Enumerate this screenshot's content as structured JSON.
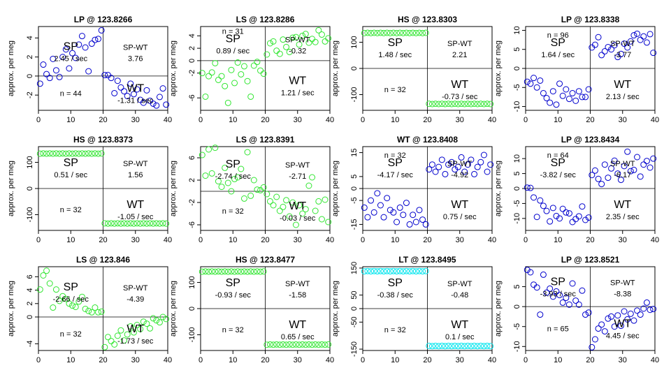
{
  "figure": {
    "ylabel": "approx. per meg",
    "x_ticks": [
      0,
      10,
      20,
      30,
      40
    ],
    "label_sp": "SP",
    "label_wt": "WT",
    "label_spwt": "SP-WT",
    "rate_suffix": " / sec",
    "n_prefix": "n = "
  },
  "chart_data": [
    {
      "type": "scatter",
      "title": "LP @ 123.8266",
      "color": "#0000cd",
      "xlim": [
        0,
        40
      ],
      "ylim": [
        -3.6,
        5.2
      ],
      "yticks": [
        -2,
        0,
        2,
        4
      ],
      "split_x": 20,
      "sp_rate": "2.45",
      "wt_rate": "-1.31",
      "spwt": "3.76",
      "n": "44",
      "n_pos": "bottom-left",
      "x": [
        0,
        1,
        2,
        3,
        4,
        5,
        6,
        7,
        8,
        9,
        10,
        11,
        12,
        13,
        14,
        15,
        16,
        17,
        18,
        19,
        20,
        21,
        22,
        23,
        24,
        25,
        26,
        27,
        28,
        29,
        30,
        31,
        32,
        33,
        34,
        35,
        36,
        37,
        38,
        39
      ],
      "y": [
        -0.8,
        1.2,
        0.2,
        -0.2,
        1.8,
        0.6,
        -0.1,
        2.0,
        2.8,
        0.8,
        2.4,
        1.9,
        3.3,
        4.2,
        3.0,
        0.5,
        3.4,
        3.8,
        3.9,
        4.8,
        0.1,
        0.1,
        -0.2,
        -1.8,
        -0.5,
        -1.2,
        -1.6,
        -2.1,
        -0.8,
        -1.9,
        -1.4,
        -2.5,
        -2.8,
        -1.5,
        -2.6,
        -2.9,
        -3.1,
        -2.2,
        -1.3,
        -3.0
      ]
    },
    {
      "type": "scatter",
      "title": "LS @ 123.8286",
      "color": "#32e632",
      "xlim": [
        0,
        40
      ],
      "ylim": [
        -8,
        5.5
      ],
      "yticks": [
        -6,
        -2,
        0,
        2,
        4
      ],
      "split_x": 20,
      "sp_rate": "0.89",
      "wt_rate": "1.21",
      "spwt": "-0.32",
      "n": "31",
      "n_pos": "top-left",
      "x": [
        0,
        1,
        2,
        3,
        4,
        5,
        6,
        7,
        8,
        9,
        10,
        11,
        12,
        13,
        14,
        15,
        16,
        17,
        18,
        19,
        20,
        21,
        22,
        23,
        24,
        25,
        26,
        27,
        28,
        29,
        30,
        31,
        32,
        33,
        34,
        35,
        36,
        37,
        38,
        39
      ],
      "y": [
        -2.0,
        -5.8,
        -2.5,
        -1.9,
        -0.4,
        -3.1,
        -2.5,
        -4.1,
        -6.8,
        -1.5,
        -3.6,
        -0.3,
        -2.2,
        -0.9,
        -3.3,
        -5.8,
        -0.8,
        -0.2,
        -1.6,
        -2.1,
        1.0,
        2.8,
        3.1,
        1.6,
        1.1,
        3.4,
        2.2,
        1.4,
        3.7,
        3.8,
        2.6,
        4.0,
        4.3,
        2.9,
        3.5,
        3.0,
        4.9,
        4.2,
        3.1,
        3.6
      ]
    },
    {
      "type": "scatter",
      "title": "HS @ 123.8303",
      "color": "#32e632",
      "xlim": [
        0,
        40
      ],
      "ylim": [
        -160,
        160
      ],
      "yticks": [
        -100,
        0,
        100
      ],
      "split_x": 20,
      "sp_rate": "1.48",
      "wt_rate": "-0.73",
      "spwt": "2.21",
      "n": "32",
      "n_pos": "bottom-left",
      "x": [
        0,
        1,
        2,
        3,
        4,
        5,
        6,
        7,
        8,
        9,
        10,
        11,
        12,
        13,
        14,
        15,
        16,
        17,
        18,
        19,
        20,
        21,
        22,
        23,
        24,
        25,
        26,
        27,
        28,
        29,
        30,
        31,
        32,
        33,
        34,
        35,
        36,
        37,
        38,
        39
      ],
      "y": [
        135,
        136,
        135,
        136,
        135,
        136,
        135,
        136,
        135,
        136,
        135,
        136,
        135,
        136,
        135,
        136,
        135,
        136,
        135,
        136,
        -135,
        -136,
        -135,
        -136,
        -135,
        -136,
        -135,
        -136,
        -135,
        -136,
        -135,
        -136,
        -135,
        -136,
        -135,
        -136,
        -135,
        -136,
        -135,
        -136
      ]
    },
    {
      "type": "scatter",
      "title": "LP @ 123.8338",
      "color": "#0000cd",
      "xlim": [
        0,
        40
      ],
      "ylim": [
        -11,
        11
      ],
      "yticks": [
        -10,
        -5,
        0,
        5,
        10
      ],
      "split_x": 20,
      "sp_rate": "1.64",
      "wt_rate": "2.13",
      "spwt": "-3.77",
      "n": "96",
      "n_pos": "top-left",
      "x": [
        0,
        1,
        2,
        3,
        4,
        5,
        6,
        7,
        8,
        9,
        10,
        11,
        12,
        13,
        14,
        15,
        16,
        17,
        18,
        19,
        20,
        21,
        22,
        23,
        24,
        25,
        26,
        27,
        28,
        29,
        30,
        31,
        32,
        33,
        34,
        35,
        36,
        37,
        38,
        39
      ],
      "y": [
        -3.5,
        -4.0,
        -2.5,
        -5.0,
        -3.2,
        -6.5,
        -7.8,
        -9.0,
        -6.0,
        -9.5,
        -4.0,
        -7.2,
        -5.5,
        -8.0,
        -6.5,
        -8.5,
        -6.0,
        -7.5,
        -7.5,
        -5.5,
        5.5,
        6.2,
        8.2,
        3.5,
        4.5,
        5.6,
        5.0,
        6.1,
        3.0,
        3.8,
        6.5,
        5.5,
        7.1,
        8.7,
        9.1,
        7.5,
        8.4,
        6.8,
        9.0,
        4.1
      ]
    },
    {
      "type": "scatter",
      "title": "HS @ 123.8373",
      "color": "#32e632",
      "xlim": [
        0,
        40
      ],
      "ylim": [
        -160,
        160
      ],
      "yticks": [
        -100,
        0,
        100
      ],
      "split_x": 20,
      "sp_rate": "0.51",
      "wt_rate": "-1.05",
      "spwt": "1.56",
      "n": "32",
      "n_pos": "bottom-left",
      "x": [
        0,
        1,
        2,
        3,
        4,
        5,
        6,
        7,
        8,
        9,
        10,
        11,
        12,
        13,
        14,
        15,
        16,
        17,
        18,
        19,
        20,
        21,
        22,
        23,
        24,
        25,
        26,
        27,
        28,
        29,
        30,
        31,
        32,
        33,
        34,
        35,
        36,
        37,
        38,
        39
      ],
      "y": [
        133,
        134,
        133,
        134,
        133,
        134,
        133,
        134,
        133,
        134,
        133,
        134,
        133,
        134,
        133,
        134,
        133,
        134,
        133,
        134,
        -133,
        -134,
        -133,
        -134,
        -133,
        -134,
        -133,
        -134,
        -133,
        -134,
        -133,
        -134,
        -133,
        -134,
        -133,
        -134,
        -133,
        -134,
        -133,
        -134
      ]
    },
    {
      "type": "scatter",
      "title": "LS @ 123.8391",
      "color": "#32e632",
      "xlim": [
        0,
        40
      ],
      "ylim": [
        -7,
        8
      ],
      "yticks": [
        -6,
        -2,
        2,
        6
      ],
      "split_x": 20,
      "sp_rate": "-2.74",
      "wt_rate": "-0.03",
      "spwt": "-2.71",
      "n": "32",
      "n_pos": "bottom-left",
      "x": [
        0,
        1,
        2,
        3,
        4,
        5,
        6,
        7,
        8,
        9,
        10,
        11,
        12,
        13,
        14,
        15,
        16,
        17,
        18,
        19,
        20,
        21,
        22,
        23,
        24,
        25,
        26,
        27,
        28,
        29,
        30,
        31,
        32,
        33,
        34,
        35,
        36,
        37,
        38,
        39
      ],
      "y": [
        6.5,
        2.8,
        7.5,
        3.2,
        7.8,
        1.8,
        0.8,
        4.2,
        1.5,
        0.0,
        2.2,
        2.5,
        4.0,
        -1.3,
        7.0,
        -0.8,
        2.0,
        0.3,
        0.2,
        0.7,
        -0.5,
        -1.8,
        -2.5,
        -1.0,
        -3.5,
        -2.8,
        -1.6,
        -4.5,
        -2.0,
        -6.0,
        -2.5,
        -4.0,
        -3.2,
        1.0,
        2.5,
        -3.5,
        -1.8,
        -5.0,
        -1.5,
        -5.5
      ]
    },
    {
      "type": "scatter",
      "title": "WT @ 123.8408",
      "color": "#0000cd",
      "xlim": [
        0,
        40
      ],
      "ylim": [
        -17.5,
        17.5
      ],
      "yticks": [
        -15,
        -5,
        0,
        5,
        15
      ],
      "split_x": 20,
      "sp_rate": "-4.17",
      "wt_rate": "0.75",
      "spwt": "-4.92",
      "n": "32",
      "n_pos": "top-left",
      "x": [
        0,
        1,
        2,
        3,
        4,
        5,
        6,
        7,
        8,
        9,
        10,
        11,
        12,
        13,
        14,
        15,
        16,
        17,
        18,
        19,
        20,
        21,
        22,
        23,
        24,
        25,
        26,
        27,
        28,
        29,
        30,
        31,
        32,
        33,
        34,
        35,
        36,
        37,
        38,
        39
      ],
      "y": [
        -8,
        -12,
        -5,
        -10,
        -2,
        -7,
        -12,
        -4,
        -9,
        -10,
        -14,
        -8,
        -11,
        -6,
        -15,
        -11,
        -14,
        -9,
        -13,
        -15,
        8,
        10,
        7,
        9,
        12,
        6,
        10,
        11,
        8,
        9,
        13,
        7,
        10,
        12,
        6,
        9,
        11,
        14,
        7,
        10
      ]
    },
    {
      "type": "scatter",
      "title": "LP @ 123.8434",
      "color": "#0000cd",
      "xlim": [
        0,
        40
      ],
      "ylim": [
        -14,
        14
      ],
      "yticks": [
        -10,
        -5,
        0,
        5,
        10
      ],
      "split_x": 20,
      "sp_rate": "-3.82",
      "wt_rate": "2.35",
      "spwt": "-6.17",
      "n": "64",
      "n_pos": "top-left",
      "x": [
        0,
        1,
        2,
        3,
        4,
        5,
        6,
        7,
        8,
        9,
        10,
        11,
        12,
        13,
        14,
        15,
        16,
        17,
        18,
        19,
        20,
        21,
        22,
        23,
        24,
        25,
        26,
        27,
        28,
        29,
        30,
        31,
        32,
        33,
        34,
        35,
        36,
        37,
        38,
        39
      ],
      "y": [
        0.3,
        0.2,
        -3.0,
        -9.5,
        -4.0,
        -5.8,
        -7.5,
        -11.0,
        -6.5,
        -9.2,
        -10.0,
        -6.8,
        -8.0,
        -8.3,
        -11.2,
        -10.2,
        -9.3,
        -6.0,
        -10.5,
        -9.7,
        4.5,
        6.0,
        3.2,
        1.5,
        8.0,
        3.6,
        6.7,
        9.3,
        5.0,
        2.9,
        7.5,
        12.3,
        5.8,
        6.2,
        10.5,
        4.0,
        8.0,
        9.2,
        7.0,
        10.0
      ]
    },
    {
      "type": "scatter",
      "title": "LS @ 123.846",
      "color": "#32e632",
      "xlim": [
        0,
        40
      ],
      "ylim": [
        -5,
        7.5
      ],
      "yticks": [
        -4,
        0,
        2,
        4,
        6
      ],
      "split_x": 20,
      "sp_rate": "-2.66",
      "wt_rate": "-1.73",
      "spwt": "-4.39",
      "n": "32",
      "n_pos": "bottom-left",
      "x": [
        0,
        1,
        2,
        3,
        4,
        5,
        6,
        7,
        8,
        9,
        10,
        11,
        12,
        13,
        14,
        15,
        16,
        17,
        18,
        19,
        20,
        21,
        22,
        23,
        24,
        25,
        26,
        27,
        28,
        29,
        30,
        31,
        32,
        33,
        34,
        35,
        36,
        37,
        38,
        39
      ],
      "y": [
        4.1,
        6.2,
        6.9,
        5.0,
        1.4,
        4.1,
        2.4,
        3.1,
        2.7,
        2.0,
        1.7,
        1.5,
        2.3,
        3.0,
        1.2,
        0.9,
        0.7,
        1.4,
        0.7,
        0.8,
        -4.5,
        -3.0,
        -3.6,
        -4.1,
        -2.8,
        -2.0,
        -3.5,
        -2.6,
        -1.4,
        -2.3,
        -1.2,
        -1.8,
        -0.7,
        -1.0,
        -1.7,
        -0.2,
        -0.5,
        -0.8,
        0.0,
        -0.3
      ]
    },
    {
      "type": "scatter",
      "title": "HS @ 123.8477",
      "color": "#32e632",
      "xlim": [
        0,
        40
      ],
      "ylim": [
        -160,
        160
      ],
      "yticks": [
        -100,
        0,
        100
      ],
      "split_x": 20,
      "sp_rate": "-0.93",
      "wt_rate": "0.65",
      "spwt": "-1.58",
      "n": "32",
      "n_pos": "bottom-left",
      "x": [
        0,
        1,
        2,
        3,
        4,
        5,
        6,
        7,
        8,
        9,
        10,
        11,
        12,
        13,
        14,
        15,
        16,
        17,
        18,
        19,
        20,
        21,
        22,
        23,
        24,
        25,
        26,
        27,
        28,
        29,
        30,
        31,
        32,
        33,
        34,
        35,
        36,
        37,
        38,
        39
      ],
      "y": [
        141,
        142,
        141,
        142,
        141,
        142,
        141,
        142,
        141,
        142,
        141,
        142,
        141,
        142,
        141,
        142,
        141,
        142,
        141,
        142,
        -138,
        -137,
        -138,
        -137,
        -138,
        -137,
        -138,
        -137,
        -138,
        -137,
        -138,
        -137,
        -138,
        -137,
        -138,
        -137,
        -138,
        -137,
        -138,
        -137
      ]
    },
    {
      "type": "scatter",
      "title": "LT @ 123.8495",
      "color": "#00e5ee",
      "xlim": [
        0,
        40
      ],
      "ylim": [
        -155,
        155
      ],
      "yticks": [
        -150,
        -50,
        0,
        50,
        150
      ],
      "split_x": 20,
      "sp_rate": "-0.38",
      "wt_rate": "0.1",
      "spwt": "-0.48",
      "n": "32",
      "n_pos": "bottom-left",
      "x": [
        0,
        1,
        2,
        3,
        4,
        5,
        6,
        7,
        8,
        9,
        10,
        11,
        12,
        13,
        14,
        15,
        16,
        17,
        18,
        19,
        20,
        21,
        22,
        23,
        24,
        25,
        26,
        27,
        28,
        29,
        30,
        31,
        32,
        33,
        34,
        35,
        36,
        37,
        38,
        39
      ],
      "y": [
        138,
        139,
        138,
        139,
        138,
        139,
        138,
        139,
        138,
        139,
        138,
        139,
        138,
        139,
        138,
        139,
        138,
        139,
        138,
        139,
        -138,
        -139,
        -138,
        -139,
        -138,
        -139,
        -138,
        -139,
        -138,
        -139,
        -138,
        -139,
        -138,
        -139,
        -138,
        -139,
        -138,
        -139,
        -138,
        -139
      ]
    },
    {
      "type": "scatter",
      "title": "LP @ 123.8521",
      "color": "#0000cd",
      "xlim": [
        0,
        40
      ],
      "ylim": [
        -11,
        10
      ],
      "yticks": [
        -10,
        -5,
        0,
        5
      ],
      "split_x": 20,
      "sp_rate": "-3.93",
      "wt_rate": "4.45",
      "spwt": "-8.38",
      "n": "65",
      "n_pos": "bottom-left",
      "x": [
        0,
        1,
        2,
        3,
        4,
        5,
        6,
        7,
        8,
        9,
        10,
        11,
        12,
        13,
        14,
        15,
        16,
        17,
        18,
        19,
        20,
        21,
        22,
        23,
        24,
        25,
        26,
        27,
        28,
        29,
        30,
        31,
        32,
        33,
        34,
        35,
        36,
        37,
        38,
        39
      ],
      "y": [
        9.2,
        8.6,
        5.5,
        4.8,
        -2.0,
        8.0,
        3.5,
        4.5,
        2.5,
        3.8,
        2.9,
        1.0,
        2.2,
        0.5,
        5.8,
        1.5,
        0.5,
        4.0,
        -2.0,
        -1.5,
        -10.2,
        -8.2,
        -5.5,
        -4.5,
        -6.2,
        -3.0,
        -2.5,
        -5.0,
        -2.2,
        -4.8,
        -1.2,
        -3.2,
        -1.8,
        -3.5,
        -1.0,
        -2.0,
        -0.5,
        1.0,
        -0.8,
        -0.6
      ]
    }
  ]
}
